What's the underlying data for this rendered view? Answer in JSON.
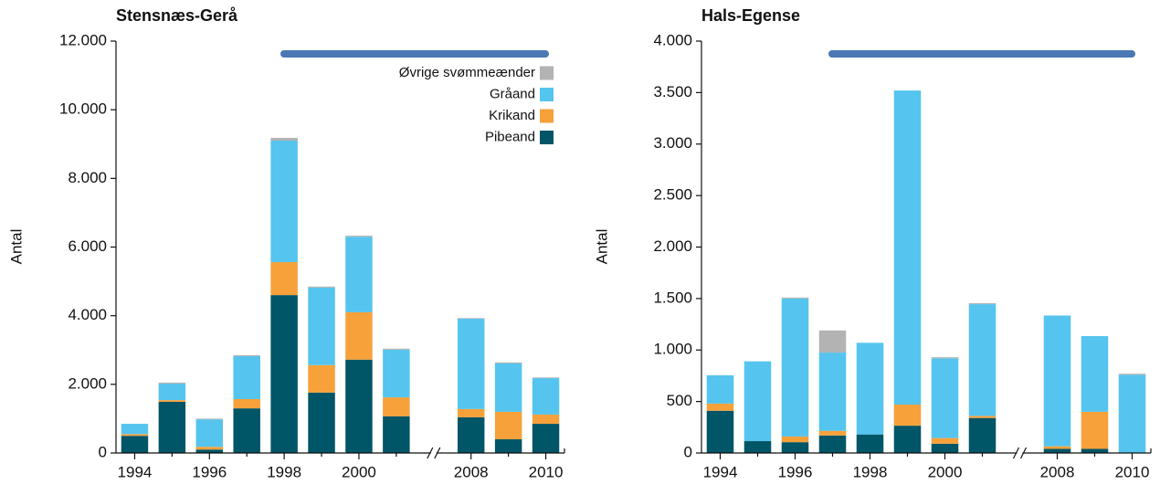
{
  "chart_data": [
    {
      "type": "bar",
      "stacked": true,
      "title": "Stensnæs-Gerå",
      "ylabel": "Antal",
      "categories": [
        "1994",
        null,
        "1996",
        null,
        "1998",
        null,
        "2000",
        null,
        "2008",
        null,
        "2010"
      ],
      "series": [
        {
          "name": "Pibeand",
          "color": "#005566",
          "values": [
            500,
            1490,
            100,
            1300,
            4600,
            1760,
            2720,
            1070,
            1040,
            400,
            850
          ]
        },
        {
          "name": "Krikand",
          "color": "#f7a13a",
          "values": [
            50,
            50,
            80,
            270,
            960,
            800,
            1380,
            550,
            240,
            800,
            270
          ]
        },
        {
          "name": "Gråand",
          "color": "#55c4ee",
          "values": [
            300,
            480,
            800,
            1250,
            3540,
            2260,
            2200,
            1390,
            2630,
            1410,
            1060
          ]
        },
        {
          "name": "Øvrige svømmeænder",
          "color": "#b3b3b3",
          "values": [
            0,
            30,
            20,
            30,
            80,
            30,
            30,
            30,
            20,
            30,
            20
          ]
        }
      ],
      "ylim": [
        0,
        12000
      ],
      "yticks": [
        0,
        {
          "value": 2000,
          "label": "2.000"
        },
        {
          "value": 4000,
          "label": "4.000"
        },
        {
          "value": 6000,
          "label": "6.000"
        },
        {
          "value": 8000,
          "label": "8.000"
        },
        {
          "value": 10000,
          "label": "10.000"
        },
        {
          "value": 12000,
          "label": "12.000"
        }
      ],
      "legend": "upper right"
    },
    {
      "type": "bar",
      "stacked": true,
      "title": "Hals-Egense",
      "ylabel": "Antal",
      "categories": [
        "1994",
        null,
        "1996",
        null,
        "1998",
        null,
        "2000",
        null,
        "2008",
        null,
        "2010"
      ],
      "series": [
        {
          "color": "#005566",
          "values": [
            410,
            115,
            105,
            170,
            180,
            265,
            90,
            340,
            40,
            40,
            0
          ]
        },
        {
          "color": "#f7a13a",
          "values": [
            70,
            0,
            55,
            45,
            0,
            205,
            55,
            20,
            25,
            360,
            0
          ]
        },
        {
          "color": "#55c4ee",
          "values": [
            275,
            775,
            1340,
            760,
            890,
            3050,
            775,
            1085,
            1270,
            735,
            760
          ]
        },
        {
          "color": "#b3b3b3",
          "values": [
            0,
            0,
            10,
            215,
            0,
            0,
            10,
            10,
            0,
            0,
            10
          ]
        }
      ],
      "ylim": [
        0,
        4000
      ],
      "yticks": [
        0,
        {
          "value": 500,
          "label": "500"
        },
        {
          "value": 1000,
          "label": "1.000"
        },
        {
          "value": 1500,
          "label": "1.500"
        },
        {
          "value": 2000,
          "label": "2.000"
        },
        {
          "value": 2500,
          "label": "2.500"
        },
        {
          "value": 3000,
          "label": "3.000"
        },
        {
          "value": 3500,
          "label": "3.500"
        },
        {
          "value": 4000,
          "label": "4.000"
        }
      ]
    }
  ]
}
